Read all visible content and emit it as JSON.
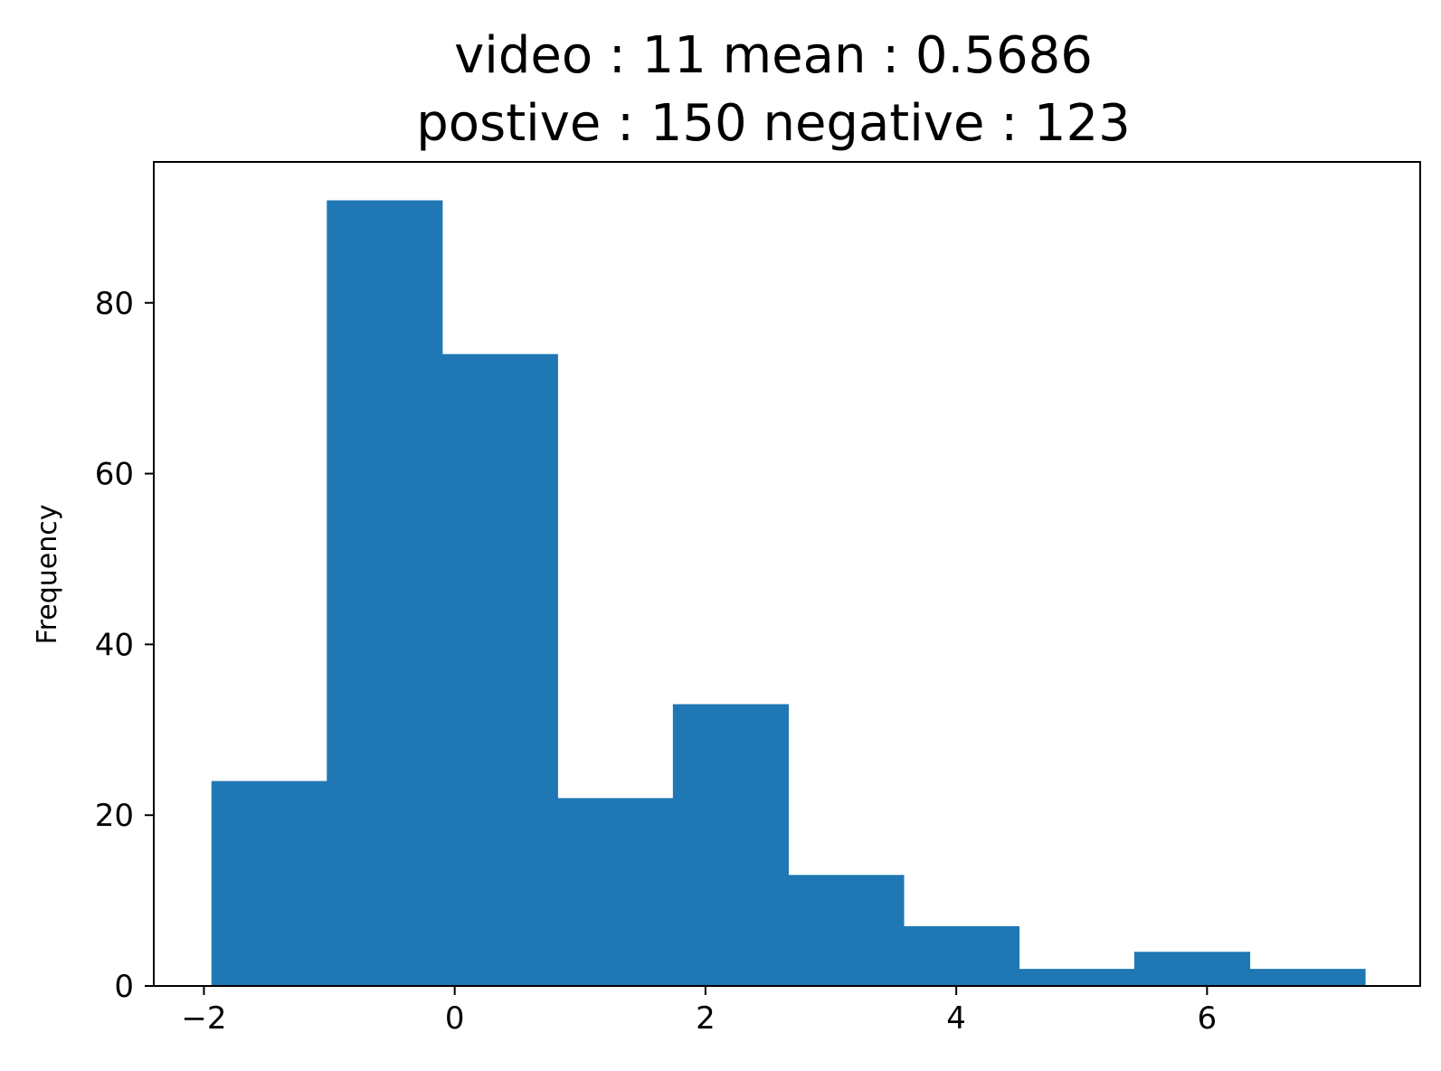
{
  "chart_data": {
    "type": "bar",
    "title_lines": [
      "video : 11  mean : 0.5686",
      "postive : 150  negative : 123"
    ],
    "xlabel": "",
    "ylabel": "Frequency",
    "bins": [
      {
        "x0": -1.94,
        "x1": -1.02,
        "value": 24
      },
      {
        "x0": -1.02,
        "x1": -0.1,
        "value": 92
      },
      {
        "x0": -0.1,
        "x1": 0.82,
        "value": 74
      },
      {
        "x0": 0.82,
        "x1": 1.74,
        "value": 22
      },
      {
        "x0": 1.74,
        "x1": 2.66,
        "value": 33
      },
      {
        "x0": 2.66,
        "x1": 3.58,
        "value": 13
      },
      {
        "x0": 3.58,
        "x1": 4.5,
        "value": 7
      },
      {
        "x0": 4.5,
        "x1": 5.42,
        "value": 2
      },
      {
        "x0": 5.42,
        "x1": 6.34,
        "value": 4
      },
      {
        "x0": 6.34,
        "x1": 7.26,
        "value": 2
      }
    ],
    "xlim": [
      -2.4,
      7.7
    ],
    "ylim": [
      0,
      96.5
    ],
    "xticks": [
      -2,
      0,
      2,
      4,
      6
    ],
    "xtick_labels": [
      "−2",
      "0",
      "2",
      "4",
      "6"
    ],
    "yticks": [
      0,
      20,
      40,
      60,
      80
    ],
    "ytick_labels": [
      "0",
      "20",
      "40",
      "60",
      "80"
    ],
    "bar_color": "#1f77b4",
    "grid": false,
    "legend": "none"
  }
}
